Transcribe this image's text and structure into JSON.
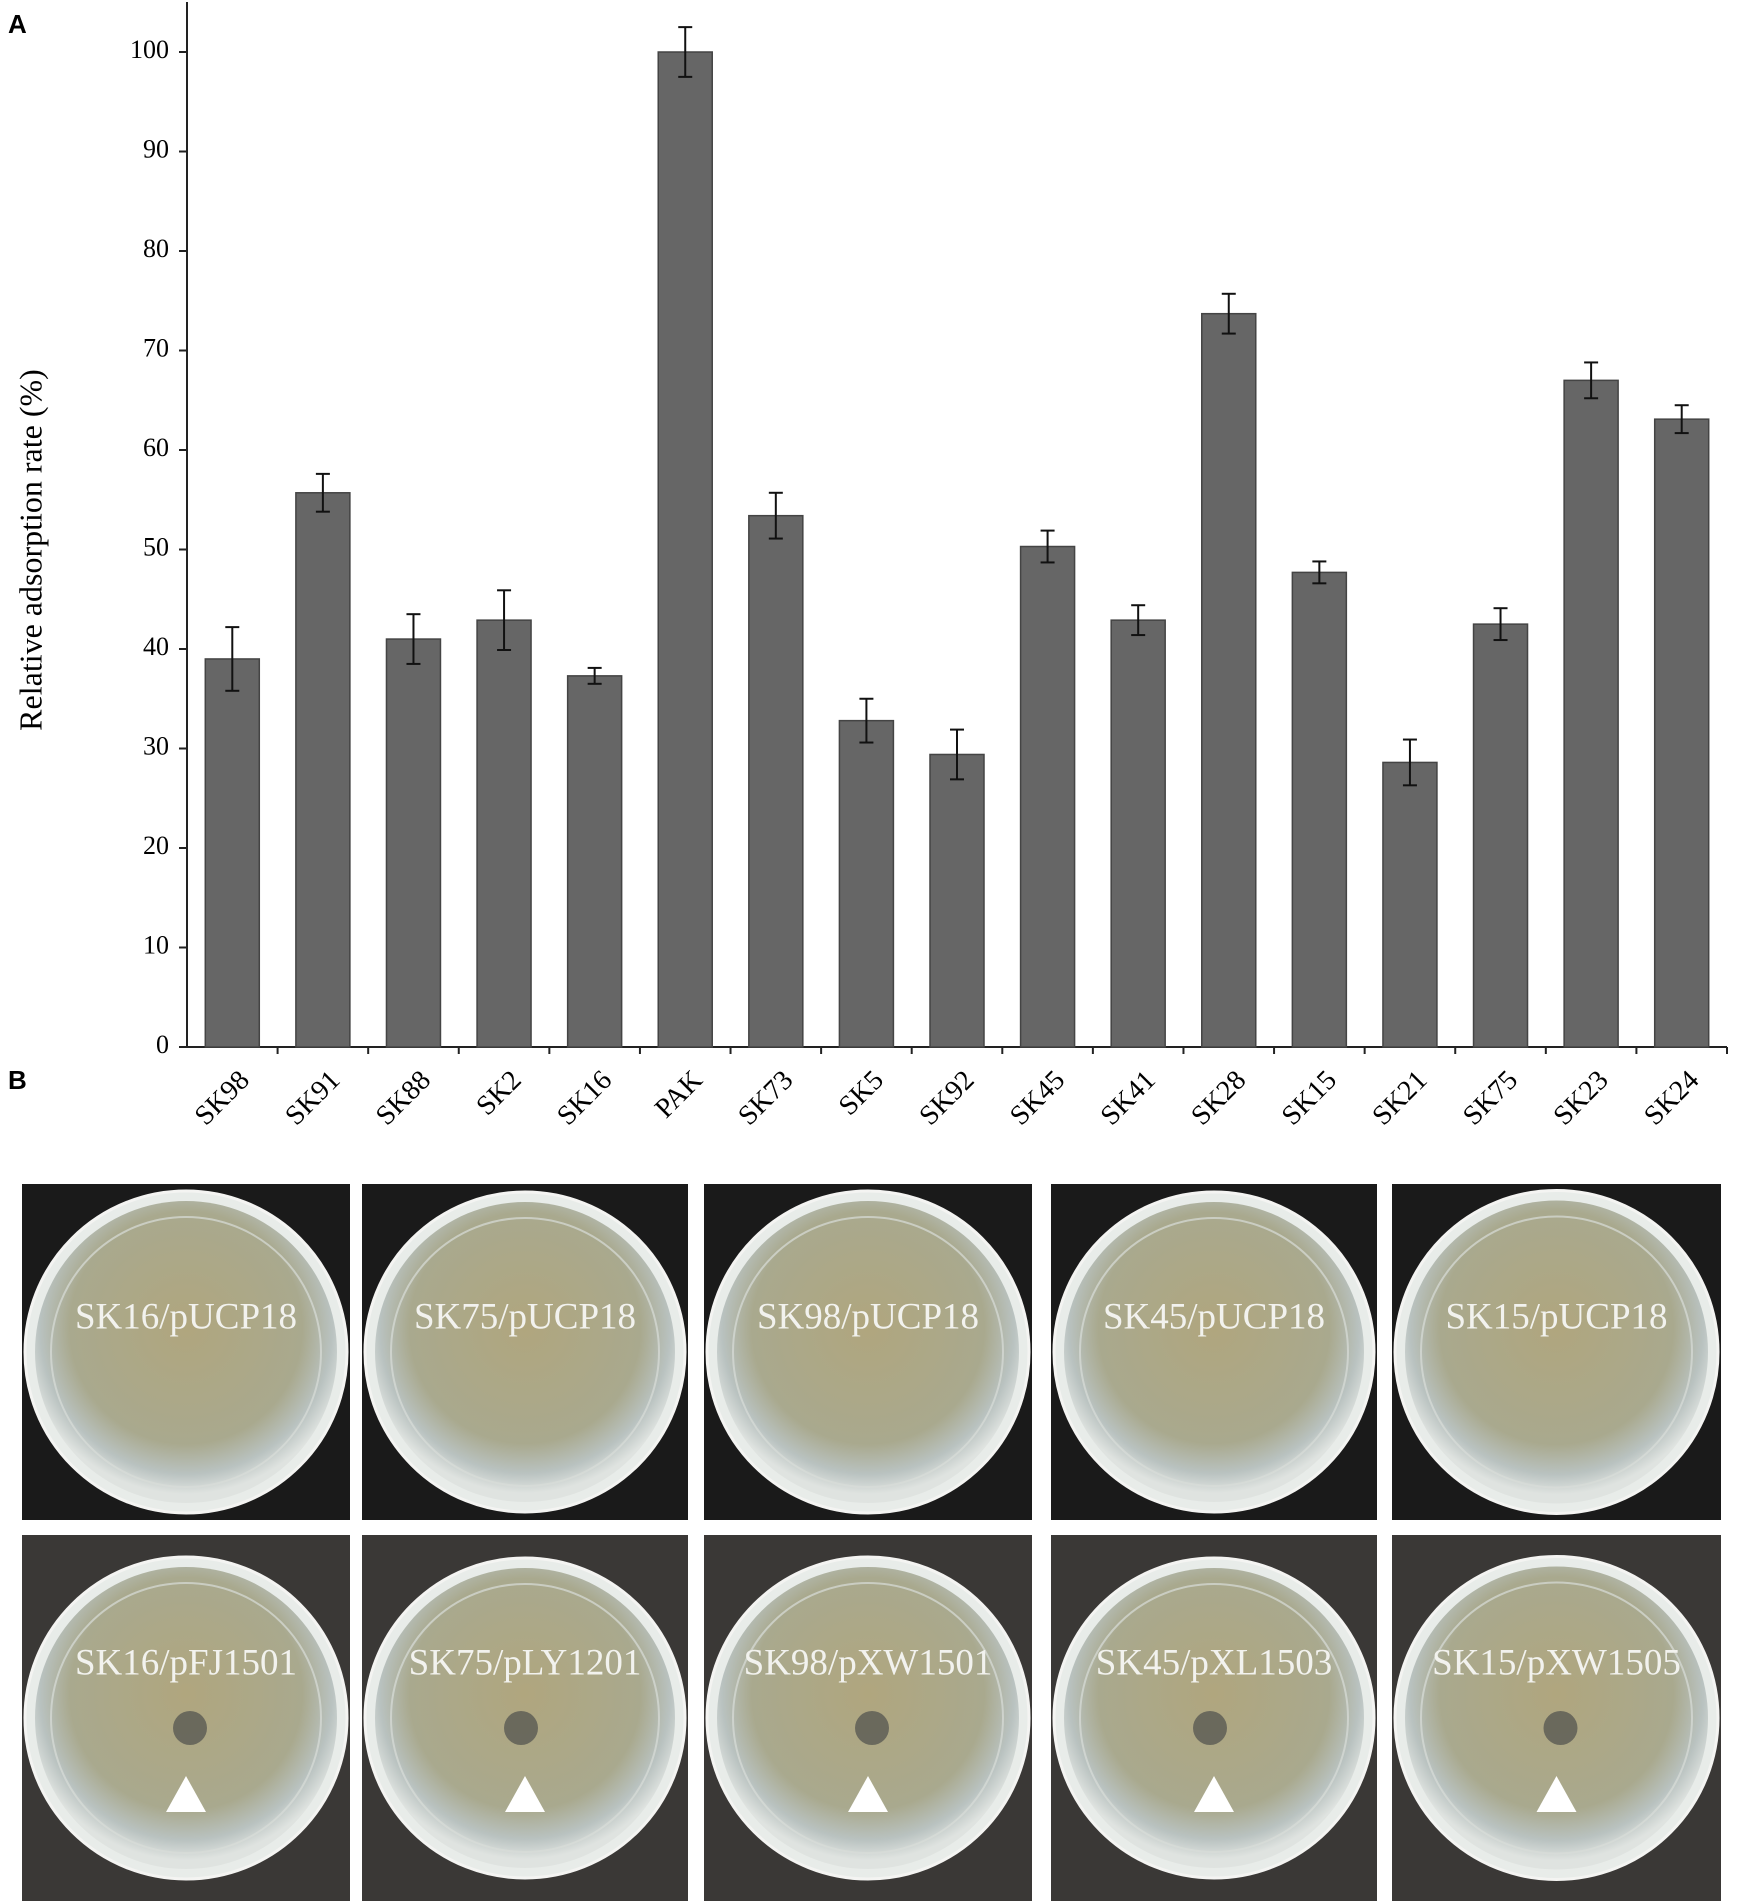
{
  "chart_data": {
    "type": "bar",
    "ylabel": "Relative adsorption rate (%)",
    "categories": [
      "SK98",
      "SK91",
      "SK88",
      "SK2",
      "SK16",
      "PAK",
      "SK73",
      "SK5",
      "SK92",
      "SK45",
      "SK41",
      "SK28",
      "SK15",
      "SK21",
      "SK75",
      "SK23",
      "SK24"
    ],
    "values": [
      39,
      55.7,
      41,
      42.9,
      37.3,
      100,
      53.4,
      32.8,
      29.4,
      50.3,
      42.9,
      73.7,
      47.7,
      28.6,
      42.5,
      67,
      63.1
    ],
    "errors": [
      3.2,
      1.9,
      2.5,
      3,
      0.8,
      2.5,
      2.3,
      2.2,
      2.5,
      1.6,
      1.5,
      2,
      1.1,
      2.3,
      1.6,
      1.8,
      1.4
    ],
    "color": "#666666",
    "ylim": [
      0,
      100
    ],
    "yticks": [
      0,
      10,
      20,
      30,
      40,
      50,
      60,
      70,
      80,
      90,
      100
    ]
  },
  "panel_labels": [
    "A",
    "B"
  ],
  "plates": {
    "top": [
      "SK16/pUCP18",
      "SK75/pUCP18",
      "SK98/pUCP18",
      "SK45/pUCP18",
      "SK15/pUCP18"
    ],
    "bottom": [
      "SK16/pFJ1501",
      "SK75/pLY1201",
      "SK98/pXW1501",
      "SK45/pXL1503",
      "SK15/pXW1505"
    ]
  }
}
